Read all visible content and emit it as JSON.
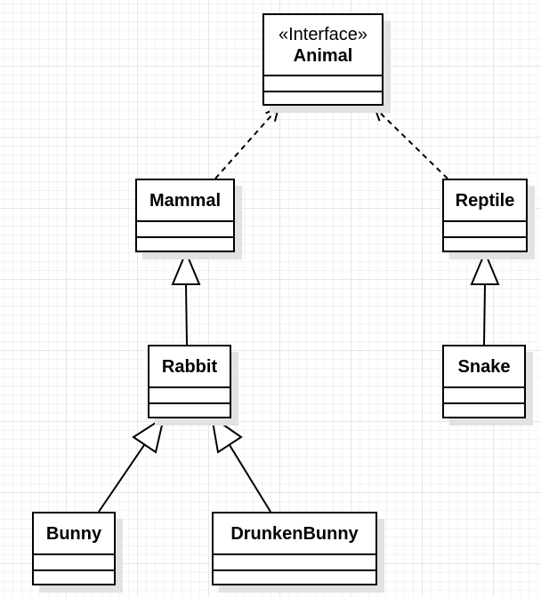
{
  "diagram": {
    "type": "UML class diagram",
    "colors": {
      "line": "#000000",
      "box_fill": "#ffffff",
      "shadow": "#e2e2e2",
      "grid": "#e6e6e6"
    },
    "classes": {
      "animal": {
        "stereotype": "«Interface»",
        "name": "Animal"
      },
      "mammal": {
        "name": "Mammal"
      },
      "reptile": {
        "name": "Reptile"
      },
      "rabbit": {
        "name": "Rabbit"
      },
      "snake": {
        "name": "Snake"
      },
      "bunny": {
        "name": "Bunny"
      },
      "drunken_bunny": {
        "name": "DrunkenBunny"
      }
    },
    "relations": [
      {
        "from": "Mammal",
        "to": "Animal",
        "kind": "realization"
      },
      {
        "from": "Reptile",
        "to": "Animal",
        "kind": "realization"
      },
      {
        "from": "Rabbit",
        "to": "Mammal",
        "kind": "generalization"
      },
      {
        "from": "Snake",
        "to": "Reptile",
        "kind": "generalization"
      },
      {
        "from": "Bunny",
        "to": "Rabbit",
        "kind": "generalization"
      },
      {
        "from": "DrunkenBunny",
        "to": "Rabbit",
        "kind": "generalization"
      }
    ]
  }
}
